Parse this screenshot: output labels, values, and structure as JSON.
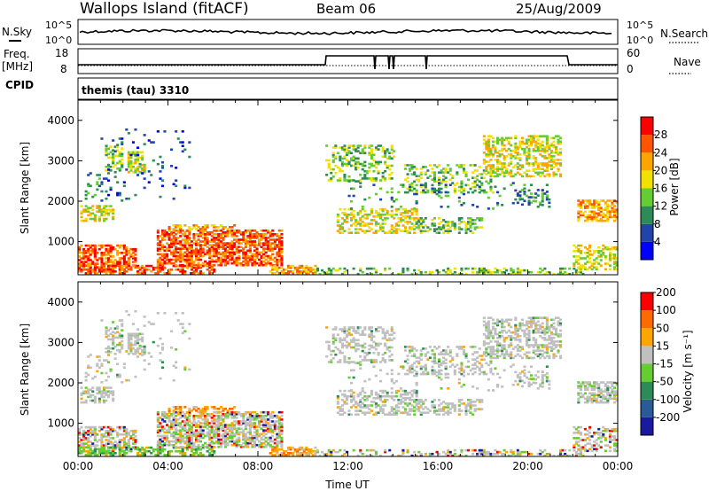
{
  "header": {
    "station": "Wallops Island (fitACF)",
    "beam": "Beam 06",
    "date": "25/Aug/2009"
  },
  "panels": {
    "noise": {
      "left_label": "N.Sky",
      "right_label": "N.Search",
      "left_ticks": [
        "10^5",
        "10^0"
      ],
      "right_ticks": [
        "10^5",
        "10^0"
      ]
    },
    "freq": {
      "left_label_1": "Freq.",
      "left_label_2": "[MHz]",
      "right_label": "Nave",
      "left_ticks": [
        "18",
        "8"
      ],
      "right_ticks": [
        "60",
        "0"
      ]
    },
    "cpid": {
      "label": "CPID",
      "value": "themis (tau) 3310"
    }
  },
  "colors": {
    "frame": "#000000",
    "power_scale": [
      "#0000ff",
      "#2244aa",
      "#2e8b57",
      "#66cc33",
      "#f2e000",
      "#ffa500",
      "#ff5500",
      "#ff0000"
    ],
    "velocity_scale": [
      "#1a1aa0",
      "#2a5a9a",
      "#2e8b57",
      "#66cc33",
      "#c0c0c0",
      "#ffa500",
      "#ff6a00",
      "#ff0000"
    ]
  },
  "chart_data": [
    {
      "type": "heatmap",
      "name": "power",
      "ylabel": "Slant Range [km]",
      "yticks": [
        1000,
        2000,
        3000,
        4000
      ],
      "ylim": [
        180,
        4500
      ],
      "xlim": [
        0,
        24
      ],
      "colorbar": {
        "label": "Power [dB]",
        "ticks": [
          "4",
          "8",
          "12",
          "16",
          "20",
          "24",
          "28"
        ]
      }
    },
    {
      "type": "heatmap",
      "name": "velocity",
      "ylabel": "Slant Range [km]",
      "yticks": [
        1000,
        2000,
        3000,
        4000
      ],
      "ylim": [
        180,
        4500
      ],
      "xlim": [
        0,
        24
      ],
      "xlabel": "Time UT",
      "xticks": [
        "00:00",
        "04:00",
        "08:00",
        "12:00",
        "16:00",
        "20:00",
        "00:00"
      ],
      "colorbar": {
        "label": "Velocity [m s⁻¹]",
        "ticks": [
          "200",
          "100",
          "50",
          "15",
          "-15",
          "-50",
          "-100",
          "-200"
        ]
      }
    }
  ]
}
